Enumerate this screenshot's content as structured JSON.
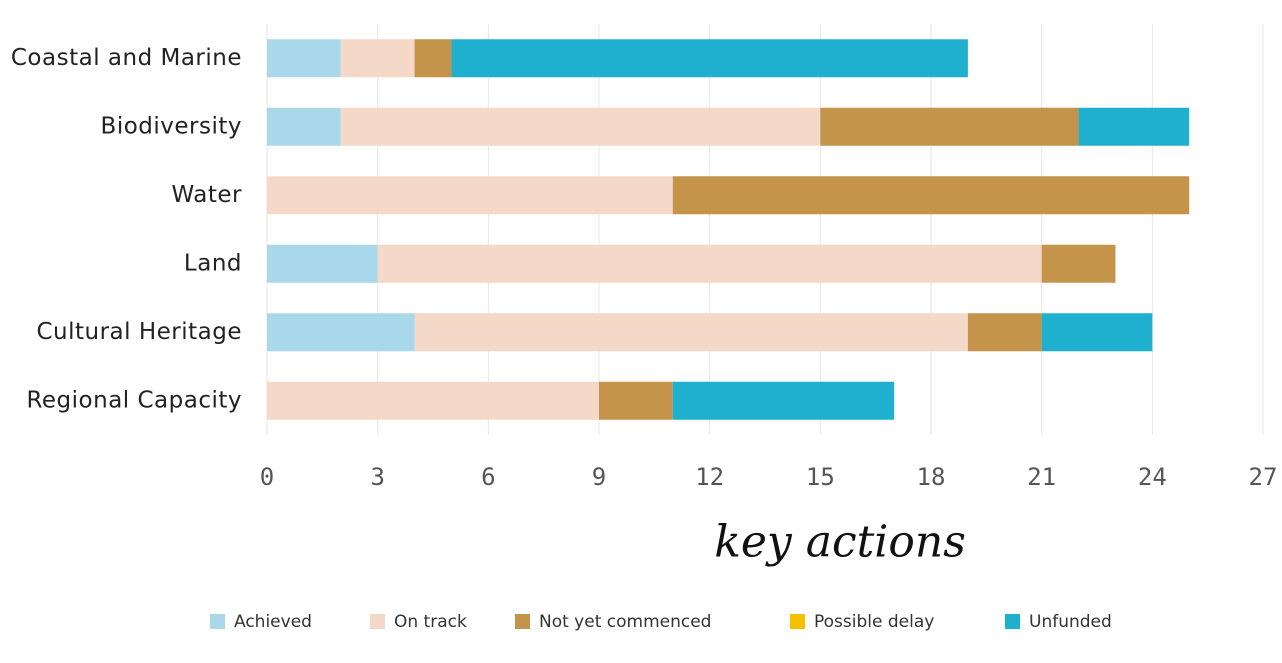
{
  "chart_data": {
    "type": "stacked-barh",
    "categories": [
      "Coastal and Marine",
      "Biodiversity",
      "Water",
      "Land",
      "Cultural Heritage",
      "Regional Capacity"
    ],
    "series": [
      {
        "name": "Achieved",
        "color": "#a8d8ea",
        "values": [
          2,
          2,
          0,
          3,
          4,
          0
        ]
      },
      {
        "name": "On track",
        "color": "#f5d9c8",
        "values": [
          2,
          13,
          11,
          18,
          15,
          9
        ]
      },
      {
        "name": "Not yet commenced",
        "color": "#c4944a",
        "values": [
          1,
          7,
          14,
          2,
          2,
          2
        ]
      },
      {
        "name": "Possible delay",
        "color": "#f5c000",
        "values": [
          0,
          0,
          0,
          0,
          0,
          0
        ]
      },
      {
        "name": "Unfunded",
        "color": "#1fb0cf",
        "values": [
          14,
          3,
          0,
          0,
          3,
          6
        ]
      }
    ],
    "xlabel": "key actions",
    "xlim": [
      0,
      27
    ],
    "xticks": [
      0,
      3,
      6,
      9,
      12,
      15,
      18,
      21,
      24,
      27
    ],
    "grid": true
  }
}
